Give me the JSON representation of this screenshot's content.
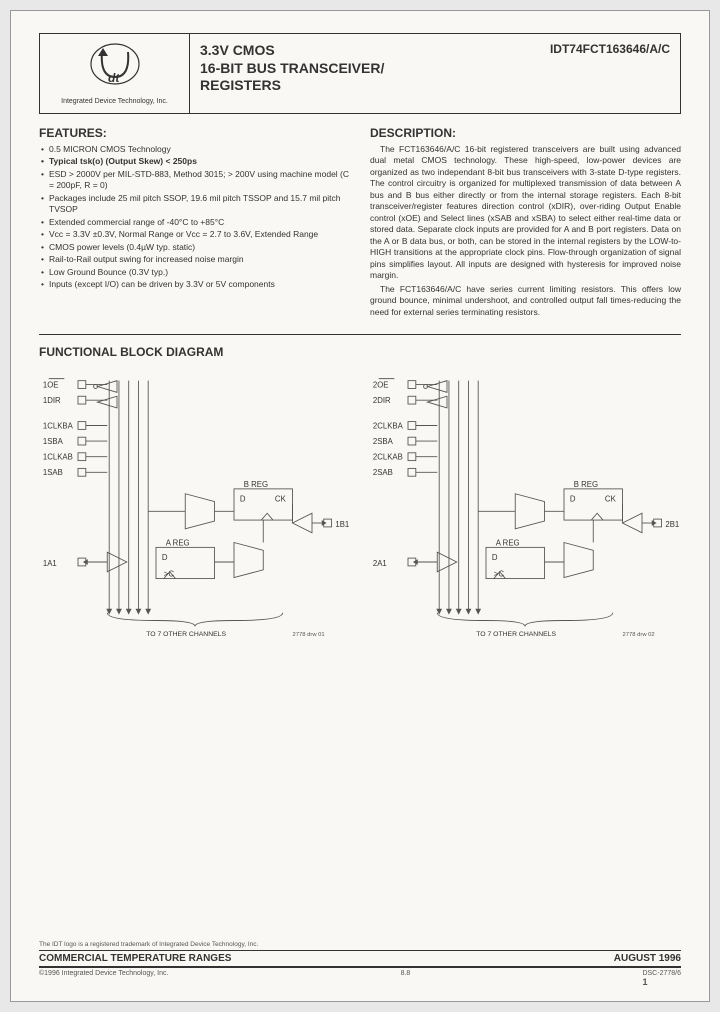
{
  "header": {
    "logo_caption": "Integrated Device Technology, Inc.",
    "title_l1": "3.3V CMOS",
    "title_l2": "16-BIT BUS TRANSCEIVER/",
    "title_l3": "REGISTERS",
    "part_number": "IDT74FCT163646/A/C"
  },
  "features": {
    "heading": "FEATURES:",
    "items": [
      "0.5 MICRON CMOS Technology",
      "Typical tsk(o) (Output Skew) < 250ps",
      "ESD > 2000V per MIL-STD-883, Method 3015; > 200V using machine model (C = 200pF, R = 0)",
      "Packages include 25 mil pitch SSOP, 19.6 mil pitch TSSOP and 15.7 mil pitch TVSOP",
      "Extended commercial range of -40°C to +85°C",
      "Vcc = 3.3V ±0.3V, Normal Range or Vcc = 2.7 to 3.6V, Extended Range",
      "CMOS power levels (0.4µW typ. static)",
      "Rail-to-Rail output swing for increased noise margin",
      "Low Ground Bounce (0.3V typ.)",
      "Inputs (except I/O) can be driven by 3.3V or 5V components"
    ],
    "bold_idx": 1
  },
  "description": {
    "heading": "DESCRIPTION:",
    "p1": "The FCT163646/A/C 16-bit registered transceivers are built using advanced dual metal CMOS technology. These high-speed, low-power devices are organized as two independant 8-bit bus transceivers with 3-state D-type registers. The control circuitry is organized for multiplexed transmission of data between A bus and B bus either directly or from the internal storage registers. Each 8-bit transceiver/register features direction control (xDIR), over-riding Output Enable control (xOE) and Select lines (xSAB and xSBA) to select either real-time data or stored data. Separate clock inputs are provided for A and B port registers. Data on the A or B data bus, or both, can be stored in the internal registers by the LOW-to-HIGH transitions at the appropriate clock pins. Flow-through organization of signal pins simplifies layout. All inputs are designed with hysteresis for improved noise margin.",
    "p2": "The FCT163646/A/C have series current limiting resistors. This offers low ground bounce, minimal undershoot, and controlled output fall times-reducing the need for external series terminating resistors."
  },
  "diagram": {
    "heading": "FUNCTIONAL BLOCK DIAGRAM",
    "left": {
      "sigs": [
        "1OE",
        "1DIR",
        "1CLKBA",
        "1SBA",
        "1CLKAB",
        "1SAB"
      ],
      "a_port": "1A1",
      "b_port": "1B1",
      "areg": "A REG",
      "breg": "B REG",
      "d": "D",
      "ck": "CK",
      "c": "C",
      "footer": "TO 7 OTHER CHANNELS",
      "code": "2778 drw 01"
    },
    "right": {
      "sigs": [
        "2OE",
        "2DIR",
        "2CLKBA",
        "2SBA",
        "2CLKAB",
        "2SAB"
      ],
      "a_port": "2A1",
      "b_port": "2B1",
      "areg": "A REG",
      "breg": "B REG",
      "d": "D",
      "ck": "CK",
      "c": "C",
      "footer": "TO 7 OTHER CHANNELS",
      "code": "2778 drw 02"
    }
  },
  "footer": {
    "trademark": "The IDT logo is a registered trademark of Integrated Device Technology, Inc.",
    "bar_left": "COMMERCIAL TEMPERATURE RANGES",
    "bar_right": "AUGUST 1996",
    "copyright": "©1996 Integrated Device Technology, Inc.",
    "page_center": "8.8",
    "dsc": "DSC-2778/6",
    "page_num": "1"
  }
}
